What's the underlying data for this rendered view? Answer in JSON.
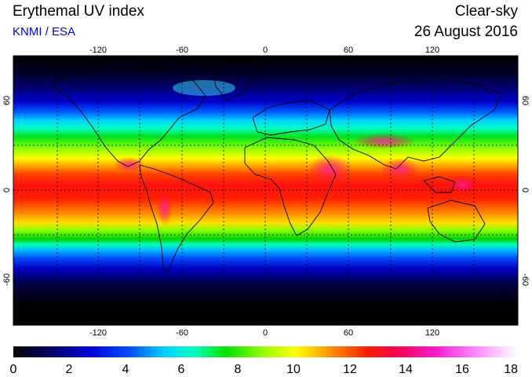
{
  "header": {
    "title": "Erythemal UV index",
    "provider": "KNMI / ESA",
    "product": "Clear-sky",
    "date": "26 August 2016"
  },
  "map": {
    "projection": "equirectangular",
    "lon_range": [
      -180,
      180
    ],
    "lat_range": [
      -90,
      90
    ],
    "graticule": "dotted",
    "lon_ticks": [
      "-120",
      "-60",
      "0",
      "60",
      "120"
    ],
    "lat_ticks": [
      "60",
      "0",
      "-60"
    ],
    "features": [
      "coastlines",
      "UV index color field"
    ]
  },
  "colorbar": {
    "min": 0,
    "max": 18,
    "labels": [
      "0",
      "2",
      "4",
      "6",
      "8",
      "10",
      "12",
      "14",
      "16",
      "18"
    ],
    "colors": [
      "#000000",
      "#00008a",
      "#0000ff",
      "#00b0ff",
      "#00ffff",
      "#00ff80",
      "#00e000",
      "#a0ff00",
      "#ffff00",
      "#ffa000",
      "#ff4000",
      "#ff0000",
      "#ff0080",
      "#ff40ff",
      "#ffb0ff",
      "#ffffff"
    ]
  }
}
